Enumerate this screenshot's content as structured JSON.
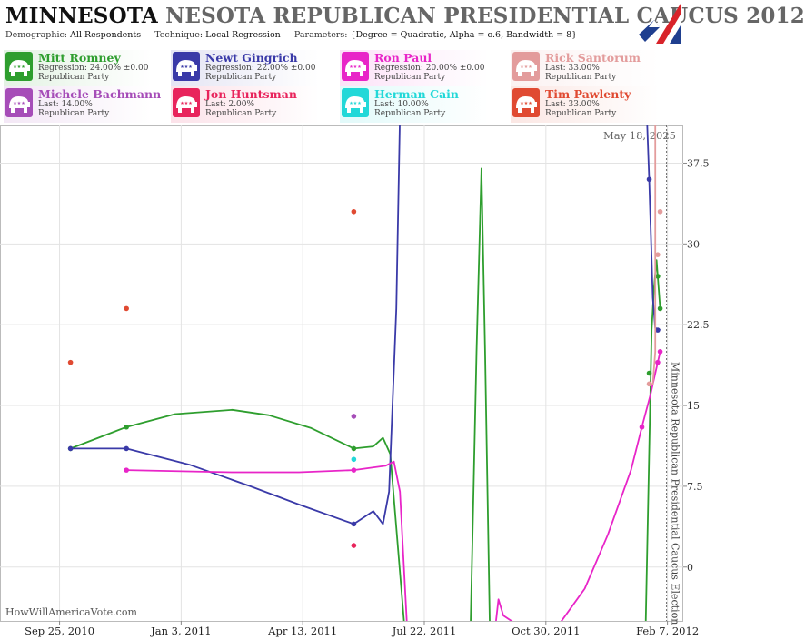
{
  "header": {
    "title_main": "MINNESOTA",
    "title_rest": "NESOTA REPUBLICAN PRESIDENTIAL CAUCUS 2012",
    "params": [
      {
        "label": "Demographic:",
        "value": "All Respondents"
      },
      {
        "label": "Technique:",
        "value": "Local Regression"
      },
      {
        "label": "Parameters:",
        "value": "{Degree = Quadratic, Alpha = o.6, Bandwidth = 8}"
      }
    ]
  },
  "candidates": [
    {
      "name": "Mitt Romney",
      "line1": "Regression: 24.00% ±0.00",
      "line2": "Republican Party",
      "color": "#2e9e2e"
    },
    {
      "name": "Newt Gingrich",
      "line1": "Regression: 22.00% ±0.00",
      "line2": "Republican Party",
      "color": "#3a3aa8"
    },
    {
      "name": "Ron Paul",
      "line1": "Regression: 20.00% ±0.00",
      "line2": "Republican Party",
      "color": "#e825c8"
    },
    {
      "name": "Rick Santorum",
      "line1": "Last: 33.00%",
      "line2": "Republican Party",
      "color": "#e39c9c"
    },
    {
      "name": "Michele Bachmann",
      "line1": "Last: 14.00%",
      "line2": "Republican Party",
      "color": "#a64db8"
    },
    {
      "name": "Jon Huntsman",
      "line1": "Last: 2.00%",
      "line2": "Republican Party",
      "color": "#e8245c"
    },
    {
      "name": "Herman Cain",
      "line1": "Last: 10.00%",
      "line2": "Republican Party",
      "color": "#22d8d8"
    },
    {
      "name": "Tim Pawlenty",
      "line1": "Last: 33.00%",
      "line2": "Republican Party",
      "color": "#e04a32"
    }
  ],
  "chart_data": {
    "type": "line",
    "date_label": "May 18, 2025",
    "event_label": "Minnesota Republican Presidential Caucus Election",
    "watermark": "HowWillAmericaVote.com",
    "y_ticks": [
      "37.5",
      "30",
      "22.5",
      "15",
      "7.5",
      "0"
    ],
    "y_values": [
      37.5,
      30,
      22.5,
      15,
      7.5,
      0
    ],
    "ylim": [
      -5,
      41
    ],
    "x_ticks": [
      "Sep 25, 2010",
      "Jan 3, 2011",
      "Apr 13, 2011",
      "Jul 22, 2011",
      "Oct 30, 2011",
      "Feb 7, 2012"
    ],
    "x_tick_dates": [
      "2010-09-25",
      "2011-01-03",
      "2011-04-13",
      "2011-07-22",
      "2011-10-30",
      "2012-02-07"
    ],
    "xlim": [
      "2010-08-07",
      "2012-02-20"
    ],
    "event_date": "2012-02-07",
    "grid": true,
    "series": [
      {
        "name": "Mitt Romney",
        "color": "#2e9e2e",
        "points": [
          [
            "2010-10-04",
            11
          ],
          [
            "2010-11-19",
            13
          ],
          [
            "2011-05-25",
            11
          ],
          [
            "2012-01-23",
            18
          ],
          [
            "2012-01-30",
            27
          ],
          [
            "2012-02-01",
            24
          ]
        ],
        "curve": [
          [
            "2010-10-04",
            11
          ],
          [
            "2010-11-19",
            13
          ],
          [
            "2010-12-29",
            14.2
          ],
          [
            "2011-02-14",
            14.6
          ],
          [
            "2011-03-16",
            14.1
          ],
          [
            "2011-04-20",
            12.9
          ],
          [
            "2011-05-25",
            11
          ],
          [
            "2011-06-10",
            11.2
          ],
          [
            "2011-06-18",
            12
          ],
          [
            "2011-06-24",
            10.5
          ],
          [
            "2011-07-06",
            -6
          ],
          [
            "2011-08-29",
            -6
          ],
          [
            "2011-09-03",
            20
          ],
          [
            "2011-09-07",
            37
          ],
          [
            "2011-09-10",
            20
          ],
          [
            "2011-09-14",
            -6
          ],
          [
            "2012-01-20",
            -6
          ],
          [
            "2012-01-25",
            22
          ],
          [
            "2012-01-27",
            26
          ],
          [
            "2012-01-29",
            28.5
          ],
          [
            "2012-01-30",
            27
          ],
          [
            "2012-02-01",
            24
          ]
        ]
      },
      {
        "name": "Newt Gingrich",
        "color": "#3a3aa8",
        "points": [
          [
            "2010-10-04",
            11
          ],
          [
            "2010-11-19",
            11
          ],
          [
            "2011-05-25",
            4
          ],
          [
            "2012-01-23",
            36
          ],
          [
            "2012-01-30",
            22
          ]
        ],
        "curve": [
          [
            "2010-10-04",
            11
          ],
          [
            "2010-11-19",
            11
          ],
          [
            "2011-01-10",
            9.5
          ],
          [
            "2011-03-01",
            7.5
          ],
          [
            "2011-04-10",
            5.8
          ],
          [
            "2011-05-25",
            4
          ],
          [
            "2011-06-10",
            5.2
          ],
          [
            "2011-06-18",
            4
          ],
          [
            "2011-06-23",
            7
          ],
          [
            "2011-06-29",
            24
          ],
          [
            "2011-07-02",
            42
          ],
          [
            "2012-01-21",
            42
          ],
          [
            "2012-01-23",
            36
          ],
          [
            "2012-01-26",
            25
          ],
          [
            "2012-01-28",
            22.2
          ],
          [
            "2012-02-01",
            22
          ]
        ]
      },
      {
        "name": "Ron Paul",
        "color": "#e825c8",
        "points": [
          [
            "2010-11-19",
            9
          ],
          [
            "2011-05-25",
            9
          ],
          [
            "2012-01-17",
            13
          ],
          [
            "2012-01-30",
            19
          ],
          [
            "2012-02-01",
            20
          ]
        ],
        "curve": [
          [
            "2010-11-19",
            9
          ],
          [
            "2011-02-14",
            8.8
          ],
          [
            "2011-04-10",
            8.8
          ],
          [
            "2011-05-25",
            9
          ],
          [
            "2011-06-20",
            9.4
          ],
          [
            "2011-06-27",
            9.8
          ],
          [
            "2011-07-02",
            7
          ],
          [
            "2011-07-08",
            -6
          ],
          [
            "2011-09-18",
            -6
          ],
          [
            "2011-09-21",
            -3
          ],
          [
            "2011-09-25",
            -4.5
          ],
          [
            "2011-10-15",
            -6
          ],
          [
            "2011-11-10",
            -5.3
          ],
          [
            "2011-12-01",
            -2
          ],
          [
            "2011-12-20",
            3
          ],
          [
            "2012-01-08",
            9
          ],
          [
            "2012-01-17",
            13
          ],
          [
            "2012-01-24",
            16
          ],
          [
            "2012-01-30",
            19
          ],
          [
            "2012-02-01",
            20
          ]
        ]
      },
      {
        "name": "Rick Santorum",
        "color": "#e39c9c",
        "points": [
          [
            "2012-01-23",
            17
          ],
          [
            "2012-01-30",
            29
          ],
          [
            "2012-02-01",
            33
          ]
        ],
        "curve": [
          [
            "2012-01-23",
            17
          ],
          [
            "2012-01-26",
            17
          ],
          [
            "2012-01-28",
            20
          ],
          [
            "2012-01-28",
            42
          ]
        ]
      },
      {
        "name": "Michele Bachmann",
        "color": "#a64db8",
        "points": [
          [
            "2011-05-25",
            14
          ]
        ],
        "curve": []
      },
      {
        "name": "Jon Huntsman",
        "color": "#e8245c",
        "points": [
          [
            "2011-05-25",
            2
          ]
        ],
        "curve": []
      },
      {
        "name": "Herman Cain",
        "color": "#22d8d8",
        "points": [
          [
            "2011-05-25",
            10
          ]
        ],
        "curve": []
      },
      {
        "name": "Tim Pawlenty",
        "color": "#e04a32",
        "points": [
          [
            "2010-10-04",
            19
          ],
          [
            "2010-11-19",
            24
          ],
          [
            "2011-05-25",
            33
          ]
        ],
        "curve": []
      }
    ]
  }
}
